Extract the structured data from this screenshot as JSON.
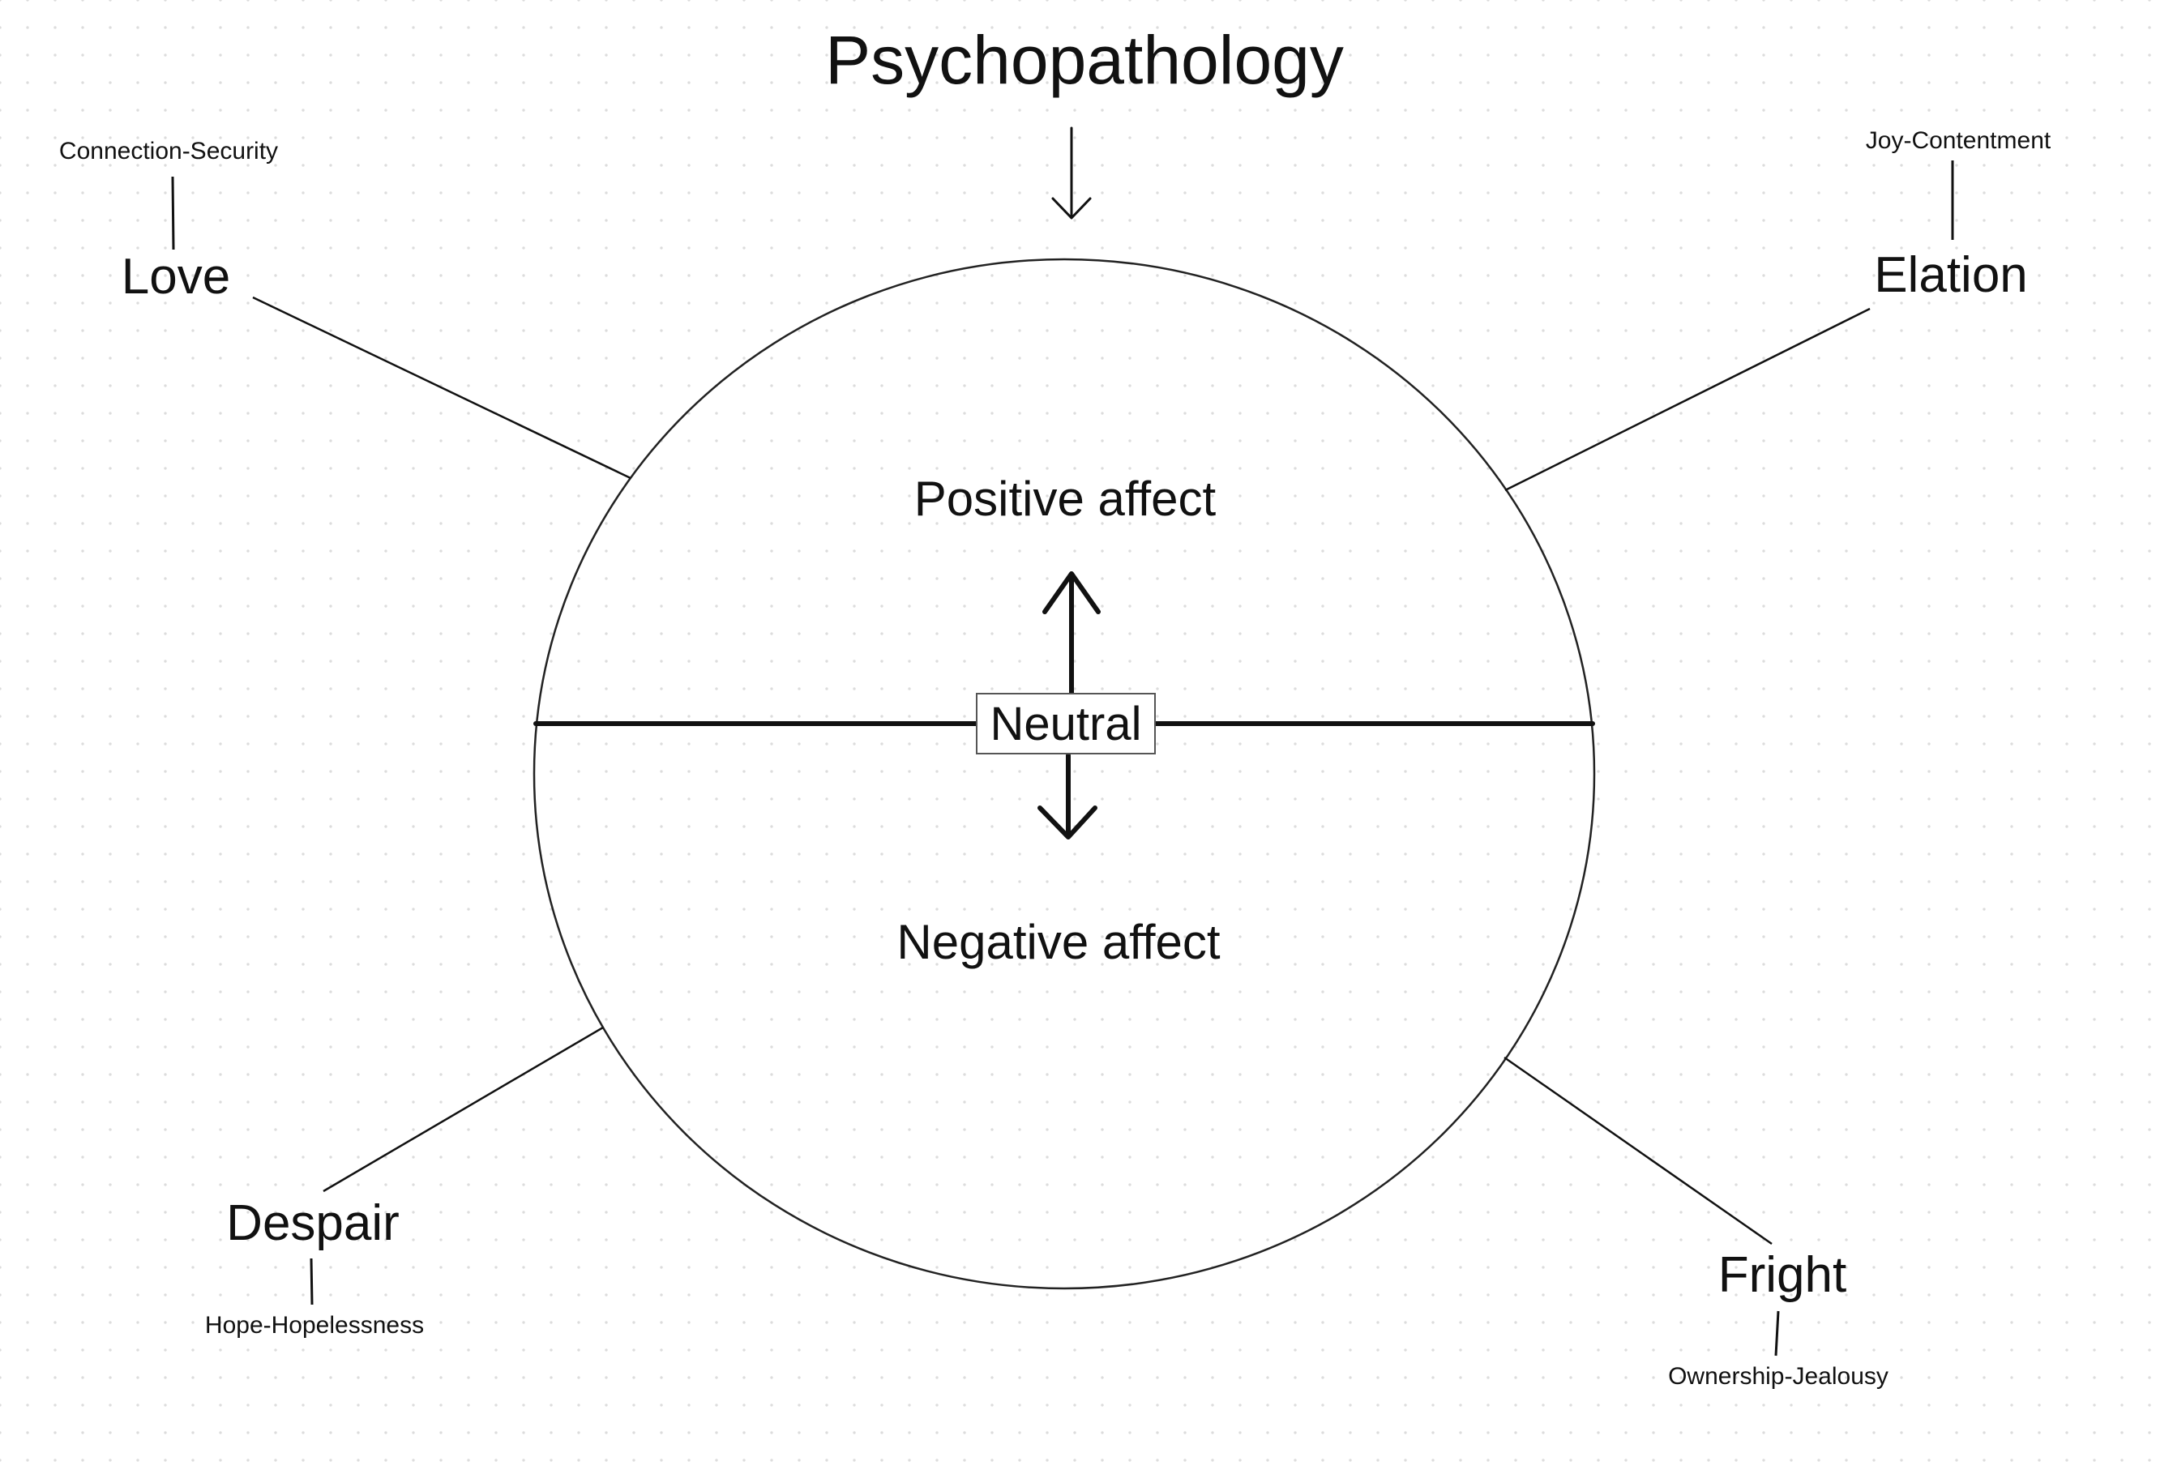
{
  "diagram": {
    "title": "Psychopathology",
    "neutral": "Neutral",
    "positive_affect": "Positive affect",
    "negative_affect": "Negative affect",
    "emotions": {
      "love": {
        "label": "Love",
        "sublabel": "Connection-Security"
      },
      "elation": {
        "label": "Elation",
        "sublabel": "Joy-Contentment"
      },
      "despair": {
        "label": "Despair",
        "sublabel": "Hope-Hopelessness"
      },
      "fright": {
        "label": "Fright",
        "sublabel": "Ownership-Jealousy"
      }
    }
  }
}
